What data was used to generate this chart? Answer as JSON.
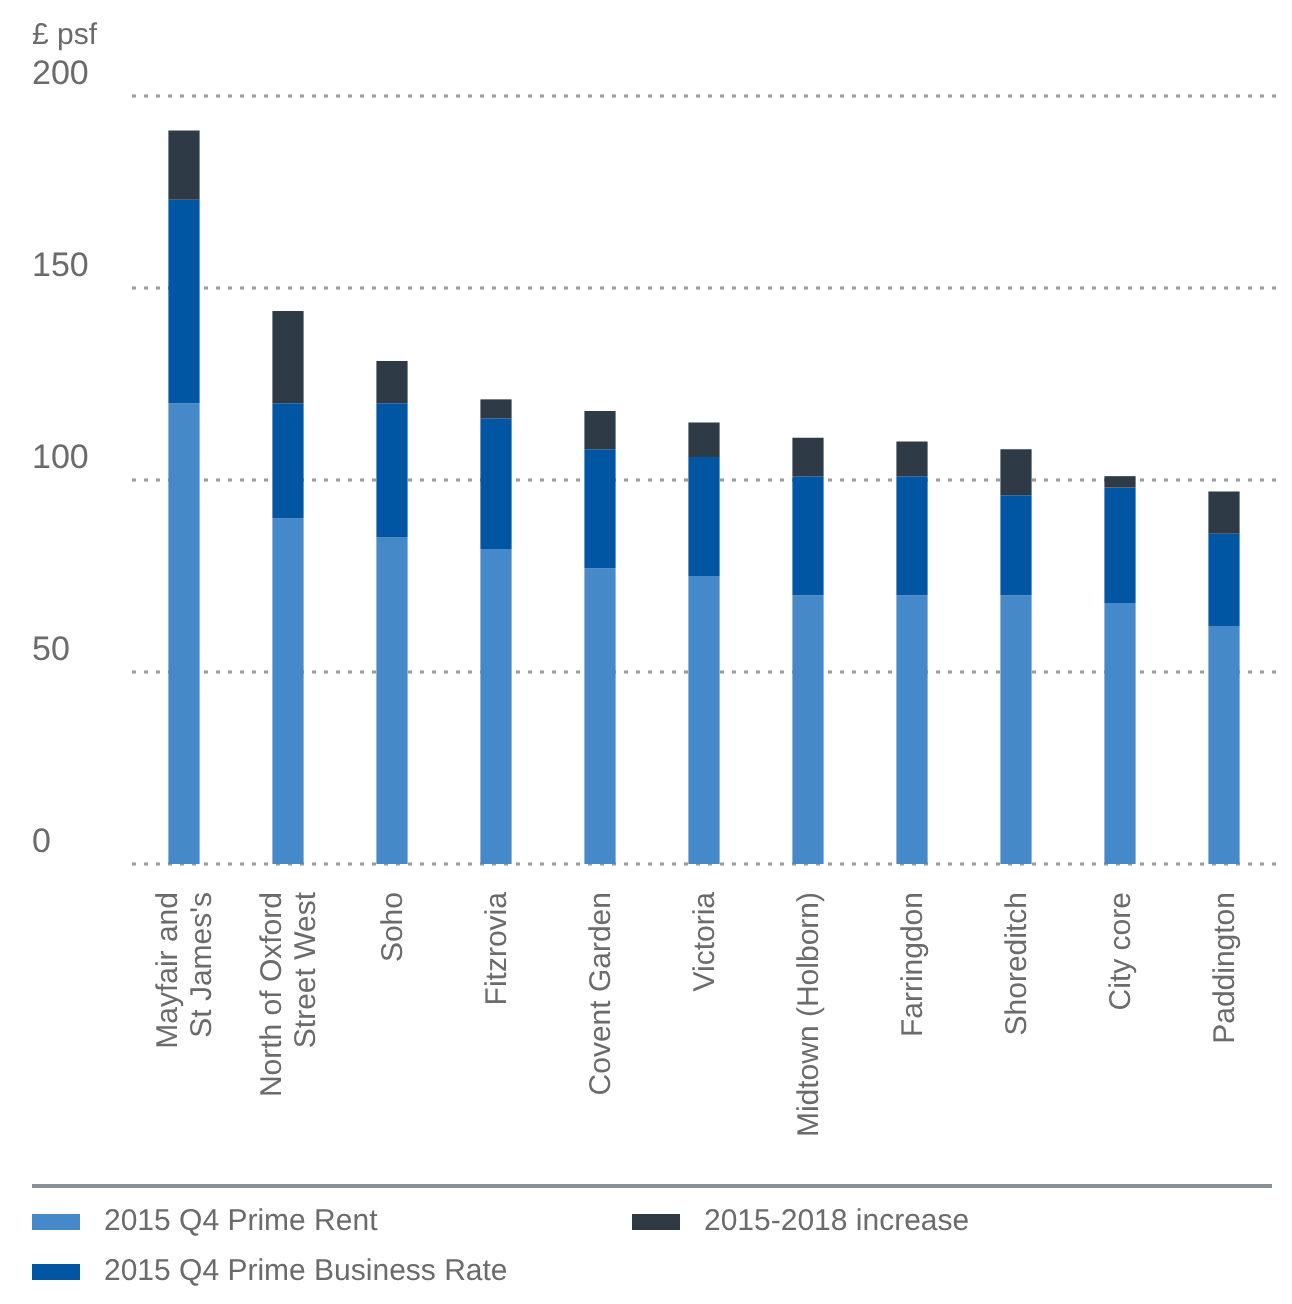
{
  "chart_data": {
    "type": "bar",
    "stacked": true,
    "ylabel": "£ psf",
    "categories": [
      "Mayfair and St James's",
      "North of Oxford Street West",
      "Soho",
      "Fitzrovia",
      "Covent Garden",
      "Victoria",
      "Midtown (Holborn)",
      "Farringdon",
      "Shoreditch",
      "City core",
      "Paddington"
    ],
    "series": [
      {
        "name": "2015 Q4 Prime Rent",
        "color": "#4589c8",
        "values": [
          120,
          90,
          85,
          82,
          77,
          75,
          70,
          70,
          70,
          68,
          62
        ]
      },
      {
        "name": "2015 Q4 Prime Business Rate",
        "color": "#0056a2",
        "values": [
          53,
          30,
          35,
          34,
          31,
          31,
          31,
          31,
          26,
          30,
          24
        ]
      },
      {
        "name": "2015-2018 increase",
        "color": "#2e3a46",
        "values": [
          18,
          24,
          11,
          5,
          10,
          9,
          10,
          9,
          12,
          3,
          11
        ]
      }
    ],
    "ylim": [
      0,
      200
    ],
    "yticks": [
      0,
      50,
      100,
      150,
      200
    ],
    "grid": "y",
    "legend": "bottom left"
  }
}
